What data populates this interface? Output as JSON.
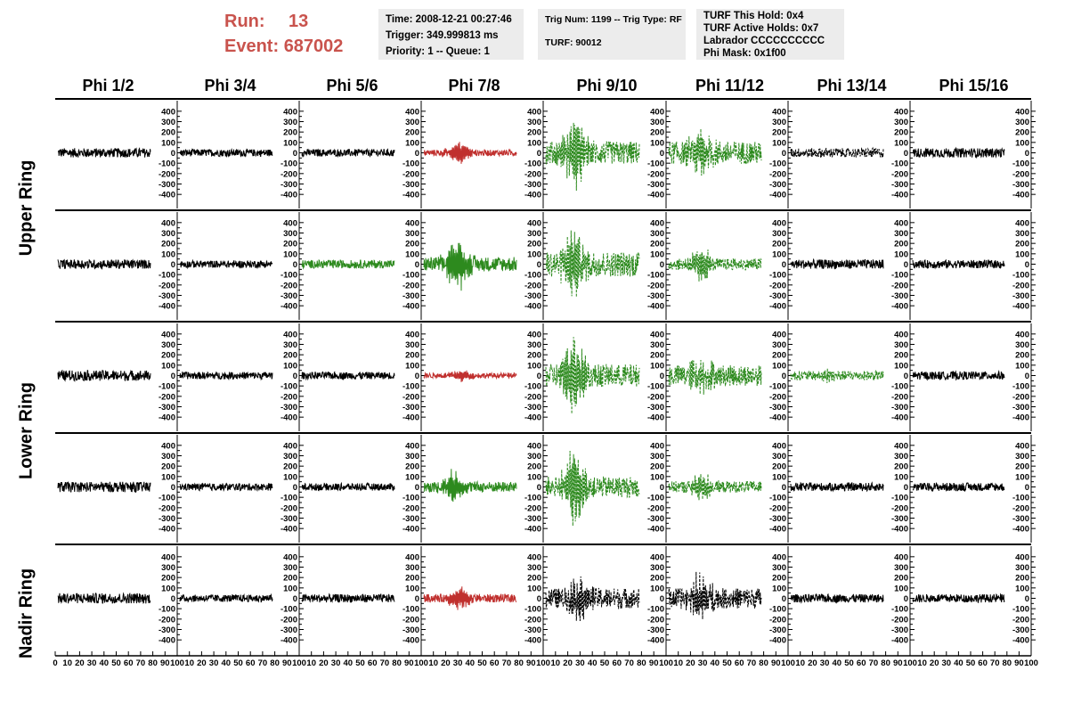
{
  "header": {
    "run_label": "Run:",
    "run_value": "13",
    "event_label": "Event:",
    "event_value": "687002"
  },
  "info_time": {
    "time": "Time: 2008-12-21 00:27:46",
    "trigger": "Trigger: 349.999813 ms",
    "priority": "Priority: 1 -- Queue: 1"
  },
  "info_trig": {
    "trig": "Trig Num: 1199 -- Trig Type: RF",
    "turf": "TURF: 90012"
  },
  "info_turf": {
    "hold": "TURF This Hold: 0x4",
    "active": "TURF Active Holds: 0x7",
    "labrador": "Labrador CCCCCCCCCC",
    "phimask": "Phi Mask: 0x1f00"
  },
  "row_labels": {
    "upper": "Upper Ring",
    "lower": "Lower Ring",
    "nadir": "Nadir Ring"
  },
  "colors": {
    "black": "#000000",
    "red": "#c0302e",
    "green": "#2d8a1e"
  },
  "chart_data": {
    "type": "line",
    "columns": [
      "Phi 1/2",
      "Phi 3/4",
      "Phi 5/6",
      "Phi 7/8",
      "Phi 9/10",
      "Phi 11/12",
      "Phi 13/14",
      "Phi 15/16"
    ],
    "ylim": [
      -450,
      450
    ],
    "yticks": [
      "400",
      "300",
      "200",
      "100",
      "0",
      "-100",
      "-200",
      "-300",
      "-400"
    ],
    "xlim": [
      0,
      100
    ],
    "xticks_first": [
      "0",
      "10",
      "20",
      "30",
      "40",
      "50",
      "60",
      "70",
      "80",
      "90",
      "100"
    ],
    "xticks_rest": [
      "10",
      "20",
      "30",
      "40",
      "50",
      "60",
      "70",
      "80",
      "90",
      "100"
    ],
    "panels": [
      [
        {
          "color": "black",
          "dash": false,
          "amp": 45,
          "burst": 0,
          "center": 40
        },
        {
          "color": "black",
          "dash": false,
          "amp": 35,
          "burst": 0,
          "center": 40
        },
        {
          "color": "black",
          "dash": false,
          "amp": 35,
          "burst": 0,
          "center": 40
        },
        {
          "color": "red",
          "dash": false,
          "amp": 30,
          "burst": 110,
          "center": 37
        },
        {
          "color": "green",
          "dash": true,
          "amp": 110,
          "burst": 330,
          "center": 32
        },
        {
          "color": "green",
          "dash": true,
          "amp": 110,
          "burst": 200,
          "center": 35
        },
        {
          "color": "black",
          "dash": true,
          "amp": 45,
          "burst": 0,
          "center": 40
        },
        {
          "color": "black",
          "dash": false,
          "amp": 45,
          "burst": 0,
          "center": 40
        }
      ],
      [
        {
          "color": "black",
          "dash": false,
          "amp": 45,
          "burst": 0,
          "center": 40
        },
        {
          "color": "black",
          "dash": false,
          "amp": 35,
          "burst": 0,
          "center": 40
        },
        {
          "color": "green",
          "dash": false,
          "amp": 40,
          "burst": 0,
          "center": 40
        },
        {
          "color": "green",
          "dash": false,
          "amp": 70,
          "burst": 250,
          "center": 36
        },
        {
          "color": "green",
          "dash": true,
          "amp": 120,
          "burst": 300,
          "center": 30
        },
        {
          "color": "green",
          "dash": true,
          "amp": 55,
          "burst": 140,
          "center": 35
        },
        {
          "color": "black",
          "dash": false,
          "amp": 45,
          "burst": 0,
          "center": 40
        },
        {
          "color": "black",
          "dash": false,
          "amp": 40,
          "burst": 0,
          "center": 40
        }
      ],
      [
        {
          "color": "black",
          "dash": false,
          "amp": 50,
          "burst": 0,
          "center": 40
        },
        {
          "color": "black",
          "dash": false,
          "amp": 35,
          "burst": 0,
          "center": 40
        },
        {
          "color": "black",
          "dash": false,
          "amp": 35,
          "burst": 0,
          "center": 40
        },
        {
          "color": "red",
          "dash": false,
          "amp": 25,
          "burst": 50,
          "center": 40
        },
        {
          "color": "green",
          "dash": true,
          "amp": 110,
          "burst": 330,
          "center": 30
        },
        {
          "color": "green",
          "dash": true,
          "amp": 100,
          "burst": 160,
          "center": 35
        },
        {
          "color": "green",
          "dash": true,
          "amp": 45,
          "burst": 40,
          "center": 40
        },
        {
          "color": "black",
          "dash": false,
          "amp": 40,
          "burst": 0,
          "center": 40
        }
      ],
      [
        {
          "color": "black",
          "dash": false,
          "amp": 50,
          "burst": 0,
          "center": 40
        },
        {
          "color": "black",
          "dash": false,
          "amp": 35,
          "burst": 0,
          "center": 40
        },
        {
          "color": "black",
          "dash": false,
          "amp": 35,
          "burst": 0,
          "center": 40
        },
        {
          "color": "green",
          "dash": false,
          "amp": 50,
          "burst": 140,
          "center": 33
        },
        {
          "color": "green",
          "dash": true,
          "amp": 100,
          "burst": 330,
          "center": 30
        },
        {
          "color": "green",
          "dash": true,
          "amp": 55,
          "burst": 120,
          "center": 35
        },
        {
          "color": "black",
          "dash": false,
          "amp": 40,
          "burst": 0,
          "center": 40
        },
        {
          "color": "black",
          "dash": false,
          "amp": 40,
          "burst": 0,
          "center": 40
        }
      ],
      [
        {
          "color": "black",
          "dash": false,
          "amp": 50,
          "burst": 0,
          "center": 40
        },
        {
          "color": "black",
          "dash": false,
          "amp": 35,
          "burst": 0,
          "center": 40
        },
        {
          "color": "black",
          "dash": false,
          "amp": 40,
          "burst": 0,
          "center": 40
        },
        {
          "color": "red",
          "dash": false,
          "amp": 40,
          "burst": 100,
          "center": 40
        },
        {
          "color": "black",
          "dash": true,
          "amp": 100,
          "burst": 150,
          "center": 35
        },
        {
          "color": "black",
          "dash": true,
          "amp": 100,
          "burst": 230,
          "center": 35
        },
        {
          "color": "black",
          "dash": false,
          "amp": 40,
          "burst": 0,
          "center": 40
        },
        {
          "color": "black",
          "dash": false,
          "amp": 40,
          "burst": 0,
          "center": 40
        }
      ]
    ]
  }
}
